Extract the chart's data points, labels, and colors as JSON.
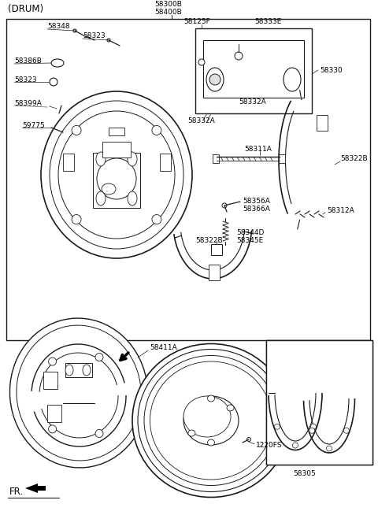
{
  "bg_color": "#ffffff",
  "line_color": "#1a1a1a",
  "title": "(DRUM)",
  "top_label1": "58300B",
  "top_label2": "58400B",
  "parts": {
    "58348": "58348",
    "58323a": "58323",
    "58386B": "58386B",
    "58323b": "58323",
    "58399A": "58399A",
    "59775": "59775",
    "58125F": "58125F",
    "58333E": "58333E",
    "58330": "58330",
    "58332A_inner": "58332A",
    "58332A_outer": "58332A",
    "58311A": "58311A",
    "58322B_r": "58322B",
    "58356A": "58356A",
    "58366A": "58366A",
    "58312A": "58312A",
    "58344D": "58344D",
    "58345E": "58345E",
    "58322B_b": "58322B",
    "58411A": "58411A",
    "1220FS": "1220FS",
    "58305": "58305",
    "FR": "FR."
  }
}
